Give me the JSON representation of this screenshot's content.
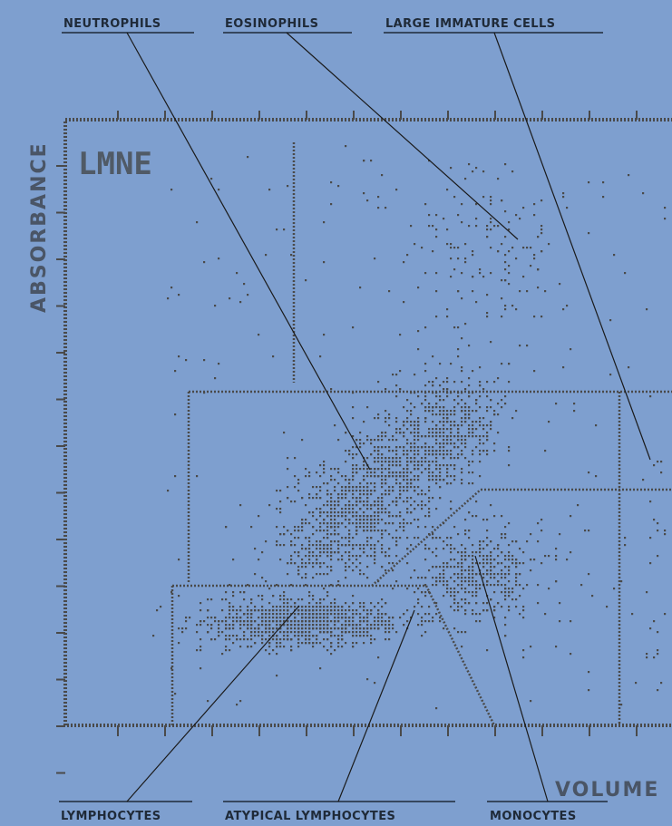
{
  "chart_data": {
    "type": "scatter",
    "title": "LMNE",
    "xlabel": "VOLUME",
    "ylabel": "ABSORBANCE",
    "grid": false,
    "annotations": [
      {
        "id": "neutrophils",
        "text": "NEUTROPHILS"
      },
      {
        "id": "eosinophils",
        "text": "EOSINOPHILS"
      },
      {
        "id": "large-immature",
        "text": "LARGE IMMATURE CELLS"
      },
      {
        "id": "lymphocytes",
        "text": "LYMPHOCYTES"
      },
      {
        "id": "atypical-lymphocytes",
        "text": "ATYPICAL LYMPHOCYTES"
      },
      {
        "id": "monocytes",
        "text": "MONOCYTES"
      }
    ]
  },
  "colors": {
    "background": "#7e9fcf",
    "dots": "#4a4a4a",
    "label_text": "#1f2a38",
    "axis_text": "#4a5566"
  }
}
